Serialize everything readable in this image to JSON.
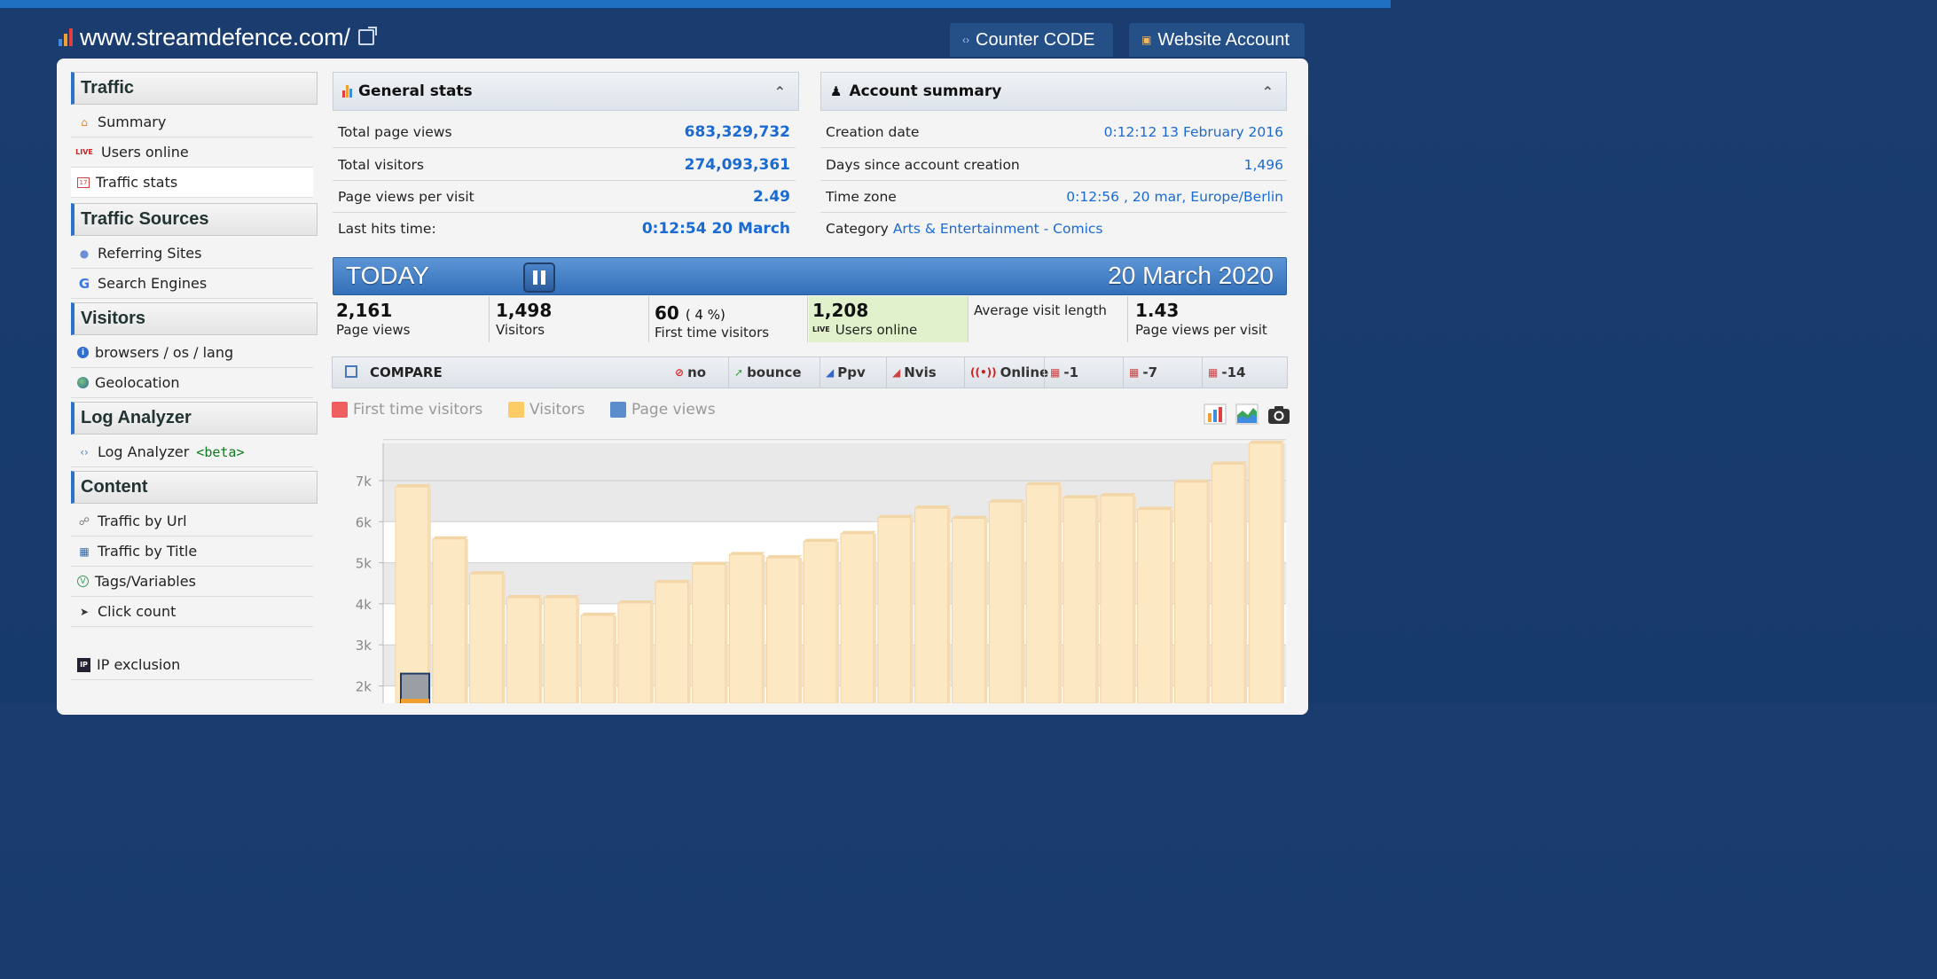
{
  "header": {
    "site_url": "www.streamdefence.com/",
    "buttons": [
      {
        "label": "Counter CODE",
        "icon": "code-icon"
      },
      {
        "label": "Website Account",
        "icon": "folder-icon"
      }
    ]
  },
  "sidebar": {
    "sections": [
      {
        "title": "Traffic",
        "items": [
          {
            "label": "Summary",
            "icon": "home-icon"
          },
          {
            "label": "Users online",
            "icon": "live-icon"
          },
          {
            "label": "Traffic stats",
            "icon": "calendar-icon",
            "active": true
          }
        ]
      },
      {
        "title": "Traffic Sources",
        "items": [
          {
            "label": "Referring Sites",
            "icon": "globe-icon"
          },
          {
            "label": "Search Engines",
            "icon": "google-icon"
          }
        ]
      },
      {
        "title": "Visitors",
        "items": [
          {
            "label": "browsers / os / lang",
            "icon": "info-icon"
          },
          {
            "label": "Geolocation",
            "icon": "earth-icon"
          }
        ]
      },
      {
        "title": "Log Analyzer",
        "items": [
          {
            "label": "Log Analyzer",
            "icon": "log-icon",
            "badge": "<beta>"
          }
        ]
      },
      {
        "title": "Content",
        "items": [
          {
            "label": "Traffic by Url",
            "icon": "link-icon"
          },
          {
            "label": "Traffic by Title",
            "icon": "title-icon"
          },
          {
            "label": "Tags/Variables",
            "icon": "tag-icon"
          },
          {
            "label": "Click count",
            "icon": "cursor-icon"
          }
        ]
      }
    ],
    "ip_exclusion": "IP exclusion"
  },
  "general_stats": {
    "title": "General stats",
    "rows": [
      {
        "label": "Total page views",
        "value": "683,329,732"
      },
      {
        "label": "Total visitors",
        "value": "274,093,361"
      },
      {
        "label": "Page views per visit",
        "value": "2.49"
      },
      {
        "label": "Last hits time:",
        "value": "0:12:54 20 March"
      }
    ]
  },
  "account_summary": {
    "title": "Account summary",
    "rows": [
      {
        "label": "Creation date",
        "value": "0:12:12 13 February 2016"
      },
      {
        "label": "Days since account creation",
        "value": "1,496"
      },
      {
        "label": "Time zone",
        "value": "0:12:56 , 20 mar, Europe/Berlin"
      }
    ],
    "category_label": "Category",
    "category_value": "Arts & Entertainment - Comics"
  },
  "today": {
    "label": "TODAY",
    "date": "20 March 2020",
    "kpis": [
      {
        "value": "2,161",
        "label": "Page views"
      },
      {
        "value": "1,498",
        "label": "Visitors"
      },
      {
        "value": "60",
        "extra": "( 4 %)",
        "label": "First time visitors"
      },
      {
        "value": "1,208",
        "label": "Users online"
      },
      {
        "value": "",
        "label": "Average visit length"
      },
      {
        "value": "1.43",
        "label": "Page views per visit"
      }
    ]
  },
  "compare": {
    "title": "COMPARE",
    "options": [
      "no",
      "bounce",
      "Ppv",
      "Nvis",
      "Online",
      "-1",
      "-7",
      "-14"
    ]
  },
  "colors": {
    "accent": "#2c73c5",
    "first_time": "#ef5f5f",
    "visitors": "#fdcc66",
    "page_views": "#5b8ccc",
    "bar_fill": "#fde8c4"
  },
  "chart_data": {
    "type": "bar",
    "series": [
      {
        "name": "First time visitors",
        "values": []
      },
      {
        "name": "Visitors",
        "values": []
      },
      {
        "name": "Page views",
        "values": [
          6850,
          5580,
          4730,
          4150,
          4150,
          3720,
          4020,
          4520,
          4960,
          5200,
          5120,
          5520,
          5710,
          6100,
          6330,
          6080,
          6480,
          6900,
          6580,
          6630,
          6300,
          6960,
          7400,
          7910
        ]
      }
    ],
    "partial_bar_value": 2300,
    "yticks": [
      "7k",
      "6k",
      "5k",
      "4k",
      "3k",
      "2k"
    ],
    "ylim": [
      1000,
      8000
    ],
    "grid": true
  }
}
